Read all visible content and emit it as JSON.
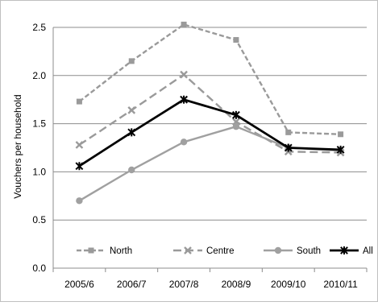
{
  "chart_data": {
    "type": "line",
    "categories": [
      "2005/6",
      "2006/7",
      "2007/8",
      "2008/9",
      "2009/10",
      "2010/11"
    ],
    "ylabel": "Vouchers per household",
    "ylim": [
      0,
      2.5
    ],
    "yticks": [
      "0.0",
      "0.5",
      "1.0",
      "1.5",
      "2.0",
      "2.5"
    ],
    "grid": "horizontal",
    "legend_position": "bottom-inside",
    "series": [
      {
        "name": "North",
        "values": [
          1.73,
          2.15,
          2.53,
          2.37,
          1.41,
          1.39
        ],
        "color": "#9a9a9a",
        "dash": "dashed",
        "marker": "square"
      },
      {
        "name": "Centre",
        "values": [
          1.28,
          1.64,
          2.01,
          1.52,
          1.21,
          1.2
        ],
        "color": "#9a9a9a",
        "dash": "long-dashed",
        "marker": "x"
      },
      {
        "name": "South",
        "values": [
          0.7,
          1.02,
          1.31,
          1.47,
          1.25,
          1.22
        ],
        "color": "#a0a0a0",
        "dash": "solid",
        "marker": "circle"
      },
      {
        "name": "All",
        "values": [
          1.06,
          1.41,
          1.75,
          1.59,
          1.25,
          1.23
        ],
        "color": "#000000",
        "dash": "solid",
        "marker": "star"
      }
    ]
  }
}
